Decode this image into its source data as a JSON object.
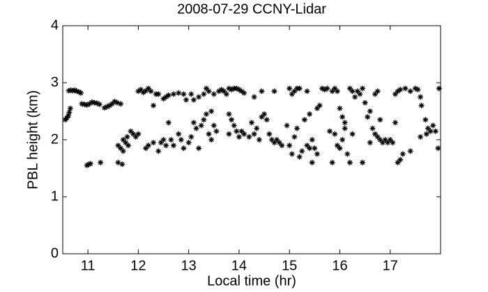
{
  "chart_data": {
    "type": "scatter",
    "title": "2008-07-29 CCNY-Lidar",
    "x_label": "Local time (hr)",
    "y_label": "PBL height (km)",
    "xlim": [
      10.5,
      18
    ],
    "ylim": [
      0,
      4
    ],
    "xticks": [
      11,
      12,
      13,
      14,
      15,
      16,
      17
    ],
    "yticks": [
      0,
      1,
      2,
      3,
      4
    ],
    "marker": "*",
    "color": "#000000",
    "x": [
      10.55,
      10.58,
      10.61,
      10.63,
      10.65,
      10.62,
      10.66,
      10.7,
      10.74,
      10.78,
      10.82,
      10.86,
      10.88,
      10.93,
      10.98,
      11.03,
      11.08,
      11.13,
      11.18,
      11.23,
      11.33,
      11.38,
      11.43,
      11.48,
      11.53,
      11.58,
      11.65,
      10.98,
      11.02,
      11.05,
      11.25,
      11.6,
      11.68,
      11.6,
      11.65,
      11.7,
      11.75,
      11.8,
      11.85,
      11.9,
      11.95,
      12.0,
      11.7,
      11.78,
      12.0,
      12.05,
      12.1,
      12.15,
      12.2,
      12.25,
      12.3,
      12.35,
      12.15,
      12.2,
      12.3,
      12.4,
      12.45,
      12.5,
      12.55,
      12.6,
      12.65,
      12.4,
      12.5,
      12.55,
      12.6,
      12.7,
      12.8,
      12.9,
      12.95,
      12.7,
      12.8,
      12.85,
      12.9,
      13.0,
      13.05,
      13.1,
      13.15,
      13.2,
      13.25,
      13.05,
      13.1,
      13.2,
      13.3,
      13.35,
      13.4,
      13.45,
      13.5,
      13.3,
      13.35,
      13.4,
      13.45,
      13.5,
      13.55,
      13.6,
      13.65,
      13.7,
      13.75,
      13.8,
      13.85,
      13.9,
      13.95,
      14.0,
      14.05,
      14.1,
      13.8,
      13.85,
      13.9,
      13.95,
      13.8,
      14.0,
      14.05,
      14.1,
      14.2,
      14.25,
      14.3,
      14.35,
      14.4,
      14.45,
      14.5,
      14.55,
      14.6,
      14.65,
      14.7,
      14.75,
      14.8,
      14.85,
      14.3,
      14.45,
      14.7,
      14.95,
      15.0,
      15.05,
      15.1,
      15.15,
      15.2,
      15.0,
      15.05,
      15.1,
      15.15,
      15.2,
      15.25,
      15.3,
      15.35,
      15.4,
      15.45,
      15.5,
      15.55,
      15.6,
      15.65,
      15.7,
      15.75,
      15.4,
      15.35,
      15.45,
      15.55,
      15.8,
      15.85,
      15.9,
      15.95,
      16.0,
      16.05,
      16.1,
      16.15,
      16.2,
      16.25,
      15.85,
      15.9,
      15.95,
      16.0,
      16.05,
      16.1,
      16.2,
      16.25,
      16.3,
      16.35,
      16.4,
      16.45,
      16.5,
      16.55,
      16.6,
      16.65,
      16.45,
      16.6,
      16.7,
      16.75,
      16.8,
      16.85,
      16.9,
      16.95,
      17.0,
      17.05,
      16.7,
      16.75,
      16.8,
      17.1,
      17.15,
      17.2,
      17.25,
      17.1,
      17.15,
      17.2,
      17.3,
      17.4,
      17.5,
      17.55,
      17.6,
      17.62,
      17.7,
      17.75,
      17.8,
      17.85,
      17.9,
      17.95,
      17.97,
      17.4,
      17.6,
      17.72
    ],
    "values": [
      2.35,
      2.38,
      2.42,
      2.48,
      2.55,
      2.86,
      2.87,
      2.86,
      2.87,
      2.85,
      2.84,
      2.82,
      2.63,
      2.62,
      2.61,
      2.63,
      2.66,
      2.65,
      2.64,
      2.62,
      2.56,
      2.58,
      2.6,
      2.63,
      2.67,
      2.65,
      2.63,
      1.55,
      1.57,
      1.58,
      1.6,
      1.6,
      1.57,
      1.9,
      1.85,
      2.0,
      1.95,
      1.9,
      2.15,
      2.1,
      2.05,
      2.1,
      1.8,
      2.05,
      2.85,
      2.88,
      2.83,
      2.86,
      2.9,
      2.85,
      2.6,
      2.8,
      1.85,
      1.9,
      1.95,
      1.8,
      1.95,
      2.0,
      1.9,
      2.3,
      2.0,
      2.8,
      2.72,
      2.75,
      2.78,
      2.8,
      2.82,
      2.8,
      2.7,
      1.9,
      2.1,
      2.0,
      1.85,
      1.95,
      2.05,
      2.3,
      2.2,
      1.85,
      2.25,
      2.8,
      2.7,
      2.75,
      2.8,
      2.9,
      2.85,
      2.5,
      2.8,
      2.35,
      2.45,
      2.1,
      2.0,
      2.25,
      2.15,
      2.85,
      2.88,
      2.85,
      2.8,
      2.9,
      2.88,
      2.9,
      2.9,
      2.88,
      2.85,
      2.82,
      2.45,
      2.35,
      2.25,
      2.15,
      2.1,
      2.05,
      2.15,
      2.1,
      2.05,
      2.3,
      2.1,
      2.2,
      2.0,
      2.4,
      2.45,
      2.35,
      2.1,
      2.0,
      1.95,
      2.0,
      1.95,
      1.9,
      2.75,
      2.85,
      2.85,
      2.25,
      2.9,
      2.8,
      2.85,
      2.9,
      2.9,
      1.9,
      1.75,
      2.05,
      2.2,
      1.7,
      1.8,
      2.35,
      1.9,
      1.85,
      1.6,
      1.85,
      2.55,
      2.6,
      2.9,
      2.88,
      2.9,
      2.45,
      2.85,
      2.0,
      1.75,
      2.15,
      1.6,
      2.1,
      1.9,
      1.85,
      2.0,
      2.2,
      1.75,
      1.6,
      2.1,
      2.85,
      2.9,
      2.85,
      2.55,
      2.4,
      2.3,
      2.9,
      2.85,
      2.75,
      2.85,
      2.8,
      2.9,
      2.65,
      2.4,
      2.5,
      2.2,
      1.6,
      1.95,
      2.1,
      2.05,
      2.0,
      1.95,
      2.0,
      1.95,
      2.0,
      1.95,
      2.8,
      2.85,
      2.35,
      2.3,
      1.6,
      1.65,
      1.75,
      2.8,
      2.85,
      2.88,
      2.9,
      2.85,
      2.9,
      2.88,
      2.75,
      2.6,
      2.35,
      2.2,
      2.15,
      2.25,
      2.15,
      1.85,
      2.9,
      1.8,
      2.05,
      2.1
    ]
  }
}
